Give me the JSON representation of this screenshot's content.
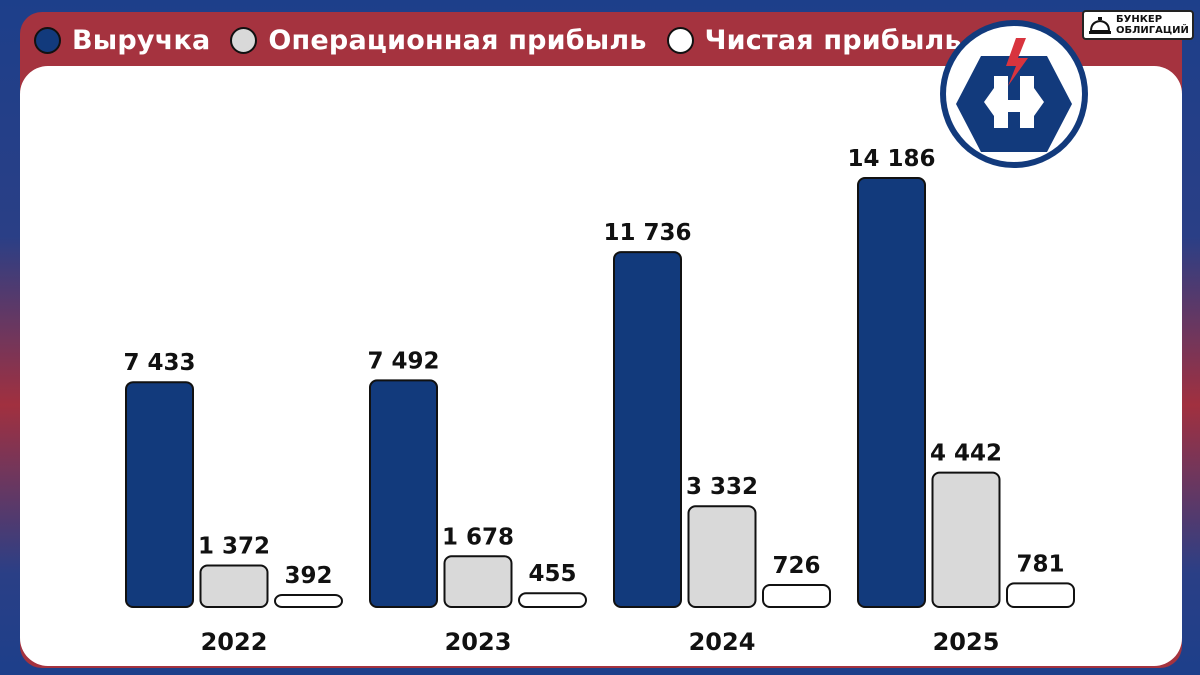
{
  "colors": {
    "revenue": "#123a7c",
    "operating_profit": "#d9d9d9",
    "net_profit": "#ffffff",
    "frame": "#a5333f",
    "outline": "#111111"
  },
  "brand": {
    "line1": "БУНКЕР",
    "line2": "ОБЛИГАЦИЙ",
    "icon": "bell-icon"
  },
  "logo": {
    "icon": "hexagon-logo-icon"
  },
  "chart_data": {
    "type": "bar",
    "categories": [
      "2022",
      "2023",
      "2024",
      "2025"
    ],
    "series": [
      {
        "name": "Выручка",
        "values": [
          7433,
          7492,
          11736,
          14186
        ],
        "labels": [
          "7 433",
          "7 492",
          "11 736",
          "14 186"
        ],
        "color": "#123a7c"
      },
      {
        "name": "Операционная прибыль",
        "values": [
          1372,
          1678,
          3332,
          4442
        ],
        "labels": [
          "1 372",
          "1 678",
          "3 332",
          "4 442"
        ],
        "color": "#d9d9d9"
      },
      {
        "name": "Чистая прибыль",
        "values": [
          392,
          455,
          726,
          781
        ],
        "labels": [
          "392",
          "455",
          "726",
          "781"
        ],
        "color": "#ffffff"
      }
    ],
    "legend_position": "top-left",
    "grid": false,
    "ylim": [
      0,
      15500
    ]
  }
}
